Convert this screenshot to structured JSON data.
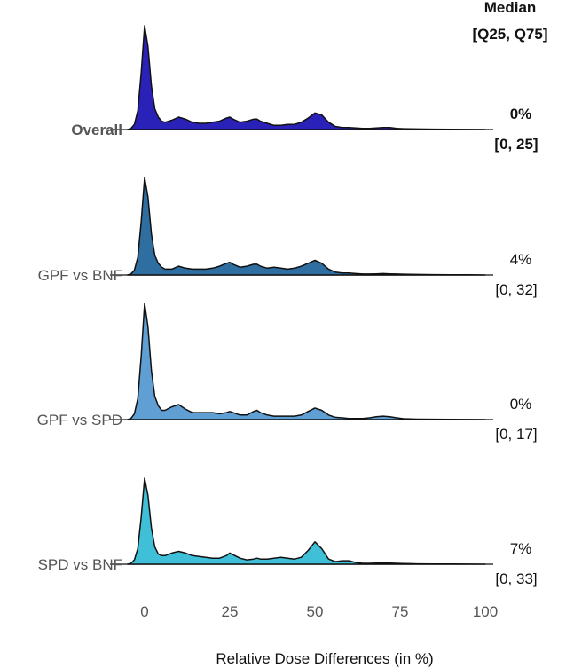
{
  "chart_data": {
    "type": "ridgeline",
    "xlabel": "Relative Dose Differences (in %)",
    "x_ticks": [
      0,
      25,
      50,
      75,
      100
    ],
    "xlim": [
      -5,
      100
    ],
    "stat_header": [
      "Median",
      "[Q25, Q75]"
    ],
    "density_grid_x": [
      -5,
      -4,
      -3,
      -2,
      -1,
      0,
      1,
      2,
      3,
      4,
      5,
      6,
      8,
      10,
      12,
      14,
      16,
      18,
      20,
      22,
      24,
      25,
      26,
      28,
      30,
      32,
      33,
      34,
      36,
      38,
      40,
      42,
      44,
      46,
      48,
      50,
      52,
      54,
      56,
      58,
      60,
      62,
      64,
      66,
      68,
      70,
      72,
      74,
      76,
      78,
      80,
      85,
      90,
      95,
      100
    ],
    "series": [
      {
        "name": "Overall",
        "bold": true,
        "median": "0%",
        "iqr": "[0, 25]",
        "color": "#2a22b8",
        "density": [
          0.0,
          0.01,
          0.05,
          0.18,
          0.55,
          1.0,
          0.8,
          0.42,
          0.2,
          0.12,
          0.08,
          0.07,
          0.09,
          0.12,
          0.1,
          0.07,
          0.06,
          0.06,
          0.07,
          0.08,
          0.11,
          0.12,
          0.1,
          0.07,
          0.08,
          0.1,
          0.1,
          0.08,
          0.06,
          0.04,
          0.04,
          0.05,
          0.05,
          0.07,
          0.11,
          0.16,
          0.14,
          0.07,
          0.03,
          0.02,
          0.02,
          0.015,
          0.01,
          0.01,
          0.015,
          0.02,
          0.02,
          0.01,
          0.008,
          0.006,
          0.005,
          0.003,
          0.002,
          0.001,
          0.0
        ]
      },
      {
        "name": "GPF vs BNF",
        "bold": false,
        "median": "4%",
        "iqr": "[0, 32]",
        "color": "#2e6ea1",
        "density": [
          0.0,
          0.01,
          0.05,
          0.18,
          0.55,
          1.0,
          0.8,
          0.42,
          0.2,
          0.12,
          0.08,
          0.06,
          0.06,
          0.09,
          0.07,
          0.06,
          0.06,
          0.06,
          0.07,
          0.09,
          0.12,
          0.13,
          0.11,
          0.08,
          0.09,
          0.11,
          0.11,
          0.09,
          0.07,
          0.08,
          0.07,
          0.06,
          0.07,
          0.09,
          0.12,
          0.15,
          0.12,
          0.06,
          0.03,
          0.02,
          0.02,
          0.015,
          0.01,
          0.01,
          0.012,
          0.015,
          0.012,
          0.01,
          0.008,
          0.006,
          0.005,
          0.004,
          0.003,
          0.002,
          0.0
        ]
      },
      {
        "name": "GPF vs SPD",
        "bold": false,
        "median": "0%",
        "iqr": "[0, 17]",
        "color": "#5f9fd4",
        "density": [
          0.0,
          0.01,
          0.05,
          0.18,
          0.55,
          1.0,
          0.8,
          0.42,
          0.2,
          0.12,
          0.08,
          0.08,
          0.11,
          0.13,
          0.09,
          0.06,
          0.06,
          0.06,
          0.06,
          0.05,
          0.06,
          0.07,
          0.06,
          0.04,
          0.04,
          0.07,
          0.08,
          0.06,
          0.04,
          0.03,
          0.03,
          0.03,
          0.03,
          0.04,
          0.07,
          0.1,
          0.08,
          0.04,
          0.02,
          0.015,
          0.01,
          0.01,
          0.01,
          0.015,
          0.025,
          0.03,
          0.025,
          0.015,
          0.008,
          0.005,
          0.004,
          0.003,
          0.002,
          0.001,
          0.0
        ]
      },
      {
        "name": "SPD vs BNF",
        "bold": false,
        "median": "7%",
        "iqr": "[0, 33]",
        "color": "#40bfd8",
        "density": [
          0.0,
          0.01,
          0.05,
          0.18,
          0.55,
          1.0,
          0.8,
          0.42,
          0.2,
          0.12,
          0.1,
          0.1,
          0.13,
          0.15,
          0.13,
          0.1,
          0.09,
          0.08,
          0.07,
          0.07,
          0.1,
          0.13,
          0.11,
          0.07,
          0.05,
          0.06,
          0.07,
          0.06,
          0.06,
          0.07,
          0.08,
          0.07,
          0.06,
          0.08,
          0.16,
          0.26,
          0.18,
          0.06,
          0.03,
          0.04,
          0.04,
          0.02,
          0.01,
          0.01,
          0.012,
          0.015,
          0.012,
          0.01,
          0.008,
          0.006,
          0.004,
          0.003,
          0.002,
          0.001,
          0.0
        ]
      }
    ]
  }
}
